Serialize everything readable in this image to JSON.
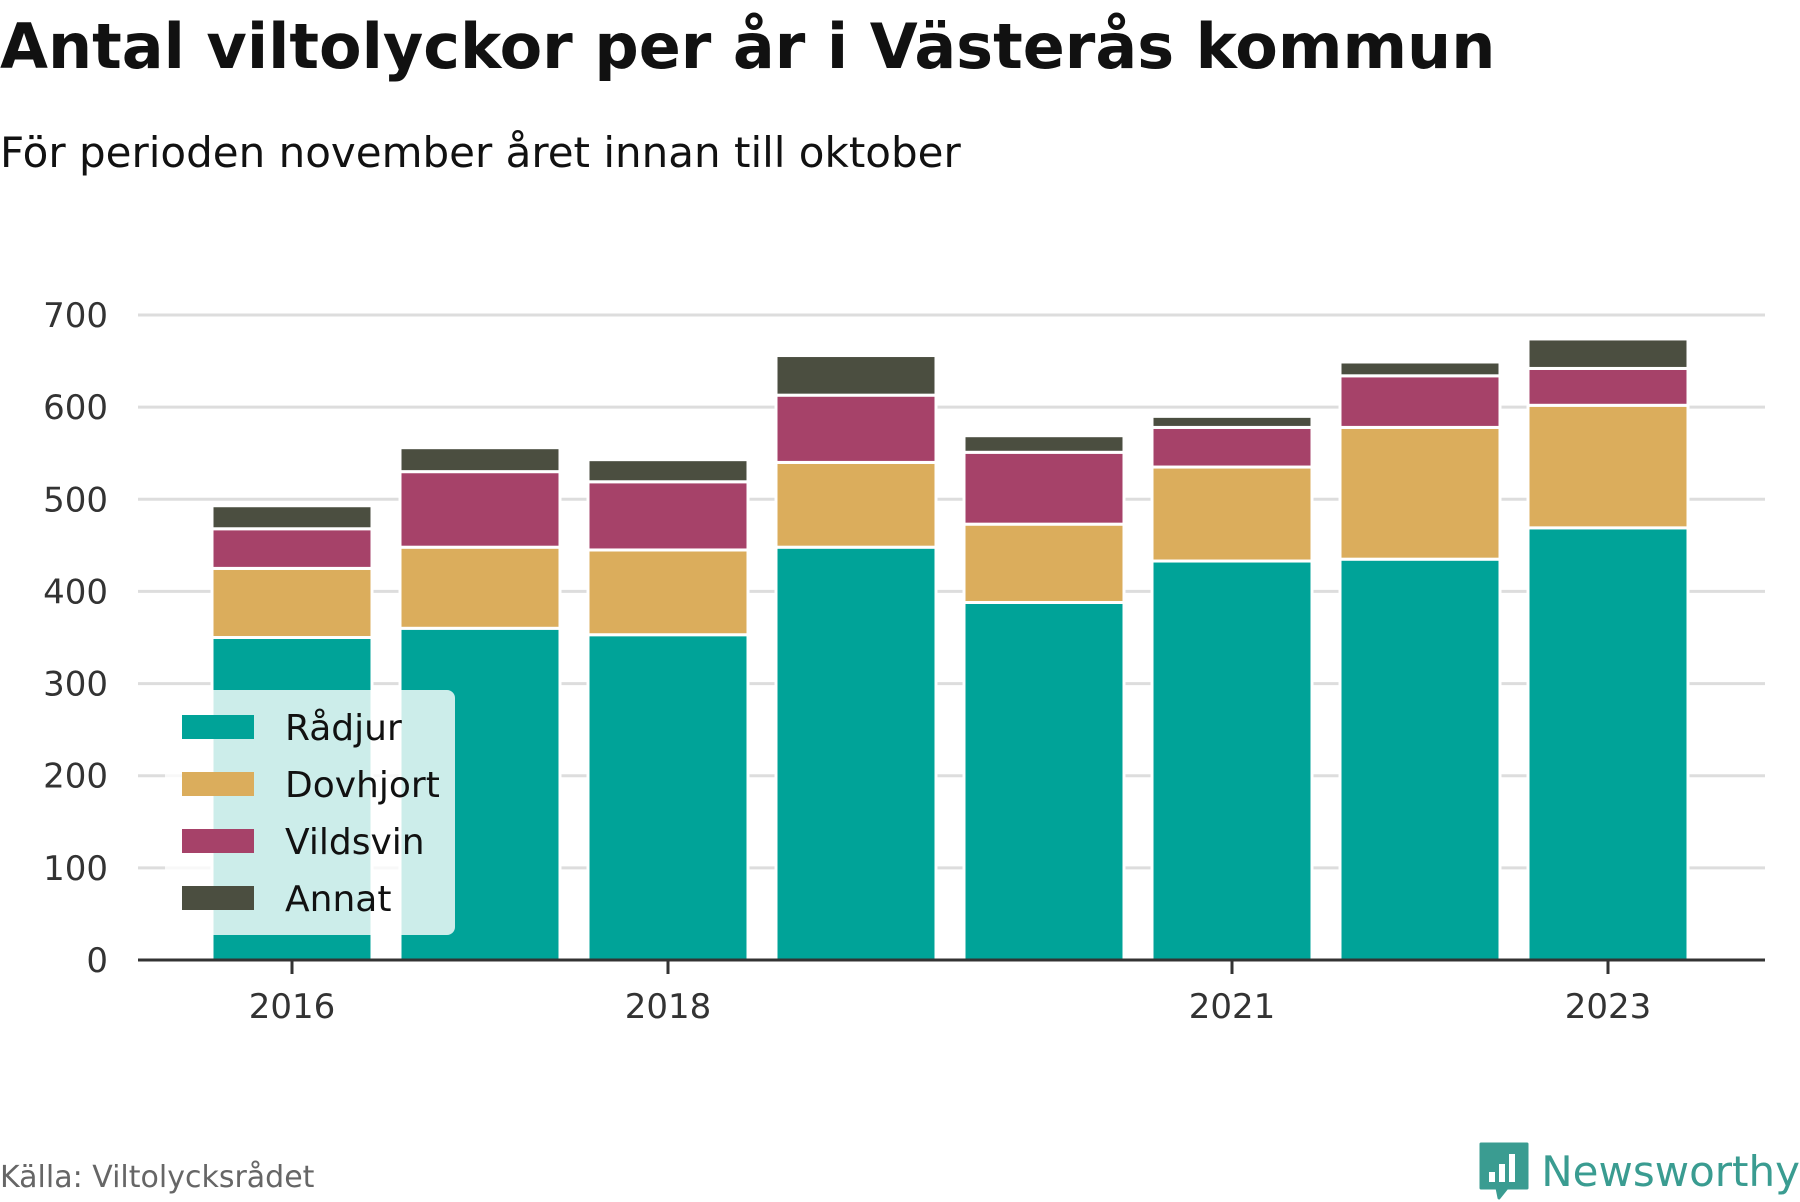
{
  "title": "Antal viltolyckor per år i Västerås kommun",
  "subtitle": "För perioden november året innan till oktober",
  "source": "Källa: Viltolycksrådet",
  "brand": {
    "name": "Newsworthy",
    "icon": "newsworthy-logo-icon",
    "color": "#3a9c91"
  },
  "chart_data": {
    "type": "bar",
    "stacked": true,
    "categories": [
      "2016",
      "2017",
      "2018",
      "2019",
      "2020",
      "2021",
      "2022",
      "2023"
    ],
    "x_tick_labels": [
      "2016",
      "",
      "2018",
      "",
      "",
      "2021",
      "",
      "2023"
    ],
    "series": [
      {
        "name": "Rådjur",
        "color": "#00a398",
        "values": [
          350,
          360,
          353,
          448,
          388,
          433,
          435,
          469
        ]
      },
      {
        "name": "Dovhjort",
        "color": "#dbad5c",
        "values": [
          75,
          88,
          92,
          92,
          85,
          102,
          143,
          133
        ]
      },
      {
        "name": "Vildsvin",
        "color": "#a64269",
        "values": [
          43,
          82,
          74,
          73,
          78,
          43,
          56,
          40
        ]
      },
      {
        "name": "Annat",
        "color": "#4b4e40",
        "values": [
          25,
          26,
          24,
          43,
          18,
          12,
          15,
          32
        ]
      }
    ],
    "ylim": [
      0,
      700
    ],
    "yticks": [
      0,
      100,
      200,
      300,
      400,
      500,
      600,
      700
    ],
    "grid": true,
    "legend": "bottom-left"
  }
}
